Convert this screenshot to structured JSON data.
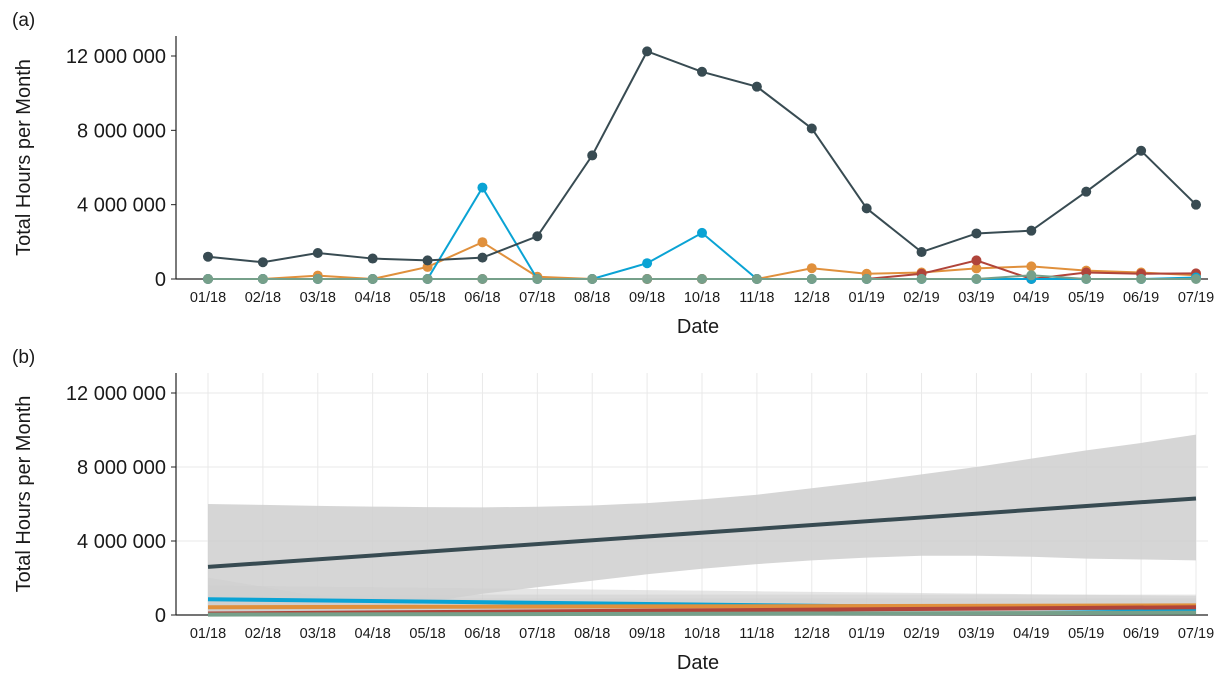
{
  "chart_data": [
    {
      "panel_label": "(a)",
      "type": "line",
      "xlabel": "Date",
      "ylabel": "Total Hours per Month",
      "categories": [
        "01/18",
        "02/18",
        "03/18",
        "04/18",
        "05/18",
        "06/18",
        "07/18",
        "08/18",
        "09/18",
        "10/18",
        "11/18",
        "12/18",
        "01/19",
        "02/19",
        "03/19",
        "04/19",
        "05/19",
        "06/19",
        "07/19"
      ],
      "ylim": [
        0,
        13000000
      ],
      "yticks": [
        0,
        4000000,
        8000000,
        12000000
      ],
      "ytick_labels": [
        "0",
        "4 000 000",
        "8 000 000",
        "12 000 000"
      ],
      "grid": false,
      "markers": true,
      "series": [
        {
          "color": "#e0903c",
          "values": [
            0,
            0,
            180000,
            0,
            650000,
            1980000,
            120000,
            0,
            0,
            0,
            0,
            580000,
            280000,
            350000,
            570000,
            680000,
            450000,
            350000,
            200000
          ]
        },
        {
          "color": "#b0443a",
          "values": [
            0,
            0,
            0,
            0,
            0,
            0,
            0,
            0,
            0,
            0,
            0,
            0,
            0,
            280000,
            1000000,
            0,
            350000,
            280000,
            300000
          ]
        },
        {
          "color": "#0aa3d4",
          "values": [
            0,
            0,
            0,
            0,
            0,
            4920000,
            0,
            0,
            850000,
            2480000,
            0,
            0,
            0,
            0,
            0,
            0,
            0,
            0,
            80000
          ]
        },
        {
          "color": "#76a08a",
          "values": [
            0,
            0,
            0,
            0,
            0,
            0,
            0,
            0,
            0,
            0,
            0,
            0,
            0,
            0,
            0,
            200000,
            0,
            0,
            0
          ]
        },
        {
          "color": "#384b52",
          "values": [
            1200000,
            900000,
            1400000,
            1100000,
            1000000,
            1150000,
            2300000,
            6650000,
            12250000,
            11150000,
            10350000,
            8100000,
            3800000,
            1450000,
            2450000,
            2600000,
            4700000,
            6900000,
            4000000
          ]
        }
      ]
    },
    {
      "panel_label": "(b)",
      "type": "line",
      "xlabel": "Date",
      "ylabel": "Total Hours per Month",
      "categories": [
        "01/18",
        "02/18",
        "03/18",
        "04/18",
        "05/18",
        "06/18",
        "07/18",
        "08/18",
        "09/18",
        "10/18",
        "11/18",
        "12/18",
        "01/19",
        "02/19",
        "03/19",
        "04/19",
        "05/19",
        "06/19",
        "07/19"
      ],
      "ylim": [
        0,
        13000000
      ],
      "yticks": [
        0,
        4000000,
        8000000,
        12000000
      ],
      "ytick_labels": [
        "0",
        "4 000 000",
        "8 000 000",
        "12 000 000"
      ],
      "grid": true,
      "markers": false,
      "confidence_band_color": "#cfcfcf",
      "series": [
        {
          "color": "#384b52",
          "start": 2600000,
          "end": 6300000,
          "band_lower": [
            2020000,
            1520000,
            1000000,
            440000,
            0,
            0,
            0,
            0,
            0,
            0,
            0,
            0,
            0,
            0,
            0,
            0,
            0,
            0,
            0
          ],
          "band_upper": [
            6000000,
            5950000,
            5900000,
            5860000,
            5830000,
            5820000,
            5850000,
            5920000,
            6050000,
            6250000,
            6500000,
            6850000,
            7200000,
            7600000,
            8000000,
            8450000,
            8900000,
            9300000,
            9750000
          ],
          "band_lower_right": [
            0,
            0,
            0,
            0,
            700000,
            1150000,
            1500000,
            1850000,
            2200000,
            2500000,
            2750000,
            2950000,
            3100000,
            3200000,
            3200000,
            3150000,
            3050000,
            3000000,
            2950000
          ]
        },
        {
          "color": "#0aa3d4",
          "start": 850000,
          "end": 280000,
          "band_lower": [
            200000
          ],
          "band_upper": [
            1600000
          ]
        },
        {
          "color": "#e0903c",
          "start": 420000,
          "end": 520000,
          "band_lower": [
            0
          ],
          "band_upper": [
            1100000
          ]
        },
        {
          "color": "#b0443a",
          "start": 80000,
          "end": 420000,
          "band_lower": [
            0
          ],
          "band_upper": [
            900000
          ]
        },
        {
          "color": "#76a08a",
          "start": 20000,
          "end": 120000,
          "band_lower": [
            0
          ],
          "band_upper": [
            400000
          ]
        }
      ]
    }
  ]
}
